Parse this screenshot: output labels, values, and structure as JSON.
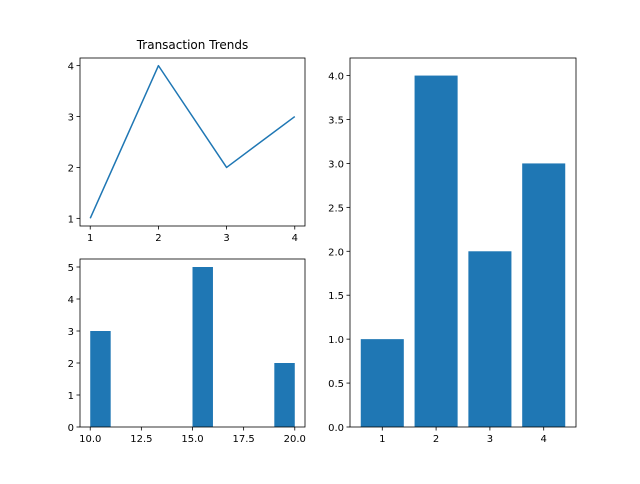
{
  "chart_data": [
    {
      "type": "line",
      "title": "Transaction Trends",
      "xlabel": "",
      "ylabel": "",
      "x": [
        1,
        2,
        3,
        4
      ],
      "series": [
        {
          "values": [
            1,
            4,
            2,
            3
          ]
        }
      ],
      "xlim": [
        0.85,
        4.15
      ],
      "ylim": [
        0.85,
        4.15
      ],
      "xticks": [
        1,
        2,
        3,
        4
      ],
      "yticks": [
        1,
        2,
        3,
        4
      ],
      "xtick_labels": [
        "1",
        "2",
        "3",
        "4"
      ],
      "ytick_labels": [
        "1",
        "2",
        "3",
        "4"
      ],
      "color": "#1f77b4",
      "grid": false
    },
    {
      "type": "bar",
      "title": "",
      "xlabel": "",
      "ylabel": "",
      "bars": [
        {
          "x": 10.0,
          "value": 3
        },
        {
          "x": 15.0,
          "value": 5
        },
        {
          "x": 19.0,
          "value": 2
        }
      ],
      "bar_width": 1.0,
      "xlim": [
        9.5,
        20.5
      ],
      "ylim": [
        0,
        5.25
      ],
      "xticks": [
        10.0,
        12.5,
        15.0,
        17.5,
        20.0
      ],
      "yticks": [
        0,
        1,
        2,
        3,
        4,
        5
      ],
      "xtick_labels": [
        "10.0",
        "12.5",
        "15.0",
        "17.5",
        "20.0"
      ],
      "ytick_labels": [
        "0",
        "1",
        "2",
        "3",
        "4",
        "5"
      ],
      "color": "#1f77b4",
      "grid": false
    },
    {
      "type": "bar",
      "title": "",
      "xlabel": "",
      "ylabel": "",
      "categories": [
        "1",
        "2",
        "3",
        "4"
      ],
      "values": [
        1.0,
        4.0,
        2.0,
        3.0
      ],
      "bar_width": 0.8,
      "xlim": [
        0.4,
        4.6
      ],
      "ylim": [
        0,
        4.2
      ],
      "yticks": [
        0,
        0.5,
        1.0,
        1.5,
        2.0,
        2.5,
        3.0,
        3.5,
        4.0
      ],
      "ytick_labels": [
        "0.0",
        "0.5",
        "1.0",
        "1.5",
        "2.0",
        "2.5",
        "3.0",
        "3.5",
        "4.0"
      ],
      "color": "#1f77b4",
      "grid": false
    }
  ]
}
